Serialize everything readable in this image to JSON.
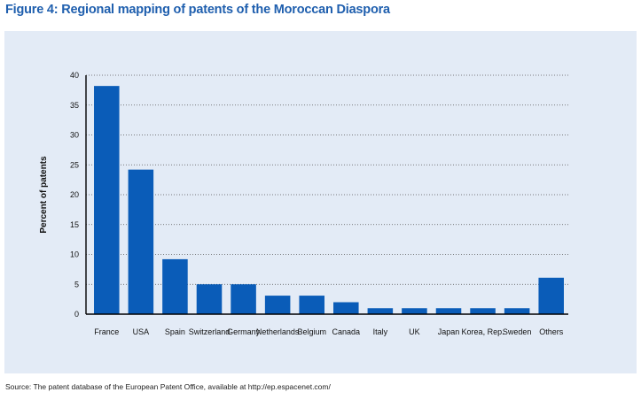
{
  "figure": {
    "title": "Figure 4: Regional mapping of patents of the Moroccan Diaspora",
    "source": "Source: The patent database of the European Patent Office, available at http://ep.espacenet.com/"
  },
  "chart_data": {
    "type": "bar",
    "title": "",
    "xlabel": "",
    "ylabel": "Percent of patents",
    "ylim": [
      0,
      40
    ],
    "yticks": [
      0,
      5,
      10,
      15,
      20,
      25,
      30,
      35,
      40
    ],
    "grid": "horizontal-dotted",
    "bar_color": "#0a5cb8",
    "categories": [
      "France",
      "USA",
      "Spain",
      "Switzerland",
      "Germany",
      "Netherlands",
      "Belgium",
      "Canada",
      "Italy",
      "UK",
      "Japan",
      "Korea, Rep.",
      "Sweden",
      "Others"
    ],
    "values": [
      38.2,
      24.2,
      9.2,
      5.0,
      5.0,
      3.1,
      3.1,
      2.0,
      1.0,
      1.0,
      1.0,
      1.0,
      1.0,
      6.1
    ]
  }
}
